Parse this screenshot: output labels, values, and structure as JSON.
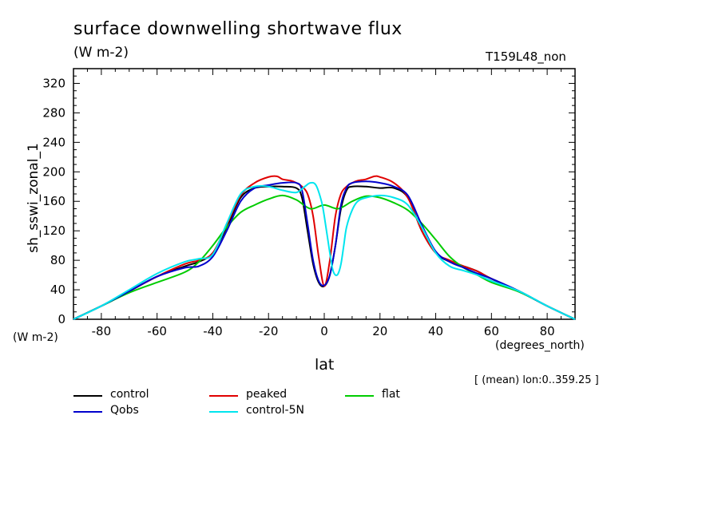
{
  "title": "surface downwelling shortwave flux",
  "units": "(W m-2)",
  "run_label": "T159L48_non",
  "note": "[ (mean) lon:0..359.25 ]",
  "chart_data": {
    "type": "line",
    "xlabel": "lat",
    "xunits": "(degrees_north)",
    "ylabel": "sh_sswi_zonal_1",
    "yunits": "(W m-2)",
    "xlim": [
      -90,
      90
    ],
    "ylim": [
      0,
      340
    ],
    "xticks": [
      -80,
      -60,
      -40,
      -20,
      0,
      20,
      40,
      60,
      80
    ],
    "yticks": [
      0,
      40,
      80,
      120,
      160,
      200,
      240,
      280,
      320
    ],
    "grid": false,
    "legend_position": "bottom",
    "series": [
      {
        "name": "control",
        "color": "#000000",
        "x": [
          -90,
          -80,
          -70,
          -60,
          -50,
          -45,
          -40,
          -35,
          -30,
          -25,
          -20,
          -15,
          -10,
          -8,
          -6,
          -4,
          -2,
          0,
          2,
          4,
          6,
          8,
          10,
          15,
          20,
          25,
          30,
          35,
          40,
          45,
          50,
          55,
          60,
          70,
          80,
          90
        ],
        "y": [
          0,
          18,
          38,
          58,
          72,
          78,
          90,
          125,
          165,
          178,
          180,
          180,
          178,
          165,
          120,
          75,
          50,
          45,
          60,
          100,
          150,
          175,
          180,
          180,
          178,
          178,
          165,
          120,
          90,
          78,
          72,
          65,
          55,
          38,
          18,
          0
        ]
      },
      {
        "name": "peaked",
        "color": "#e00000",
        "x": [
          -90,
          -80,
          -70,
          -60,
          -50,
          -45,
          -40,
          -35,
          -30,
          -25,
          -20,
          -17,
          -15,
          -12,
          -10,
          -8,
          -6,
          -4,
          -2,
          0,
          2,
          4,
          6,
          8,
          10,
          12,
          15,
          18,
          20,
          25,
          30,
          35,
          40,
          45,
          50,
          55,
          60,
          70,
          80,
          90
        ],
        "y": [
          0,
          18,
          38,
          58,
          75,
          80,
          90,
          128,
          168,
          185,
          193,
          194,
          190,
          188,
          185,
          180,
          170,
          140,
          85,
          45,
          80,
          140,
          170,
          180,
          185,
          188,
          190,
          194,
          193,
          185,
          165,
          120,
          90,
          80,
          72,
          65,
          55,
          38,
          18,
          0
        ]
      },
      {
        "name": "flat",
        "color": "#00cc00",
        "x": [
          -90,
          -80,
          -70,
          -60,
          -50,
          -45,
          -40,
          -35,
          -30,
          -25,
          -20,
          -15,
          -10,
          -5,
          0,
          5,
          10,
          15,
          20,
          25,
          30,
          35,
          40,
          45,
          50,
          55,
          60,
          70,
          80,
          90
        ],
        "y": [
          0,
          18,
          36,
          50,
          64,
          78,
          100,
          125,
          145,
          155,
          163,
          168,
          162,
          150,
          155,
          150,
          160,
          167,
          165,
          158,
          148,
          130,
          108,
          85,
          70,
          60,
          50,
          37,
          18,
          0
        ]
      },
      {
        "name": "Qobs",
        "color": "#0000cc",
        "x": [
          -90,
          -80,
          -70,
          -60,
          -50,
          -45,
          -40,
          -35,
          -30,
          -25,
          -20,
          -15,
          -10,
          -8,
          -6,
          -4,
          -2,
          0,
          2,
          4,
          6,
          8,
          10,
          15,
          20,
          25,
          30,
          35,
          40,
          45,
          50,
          55,
          60,
          70,
          80,
          90
        ],
        "y": [
          0,
          18,
          38,
          58,
          70,
          72,
          85,
          120,
          160,
          178,
          182,
          185,
          185,
          175,
          130,
          80,
          52,
          46,
          60,
          100,
          155,
          178,
          185,
          187,
          185,
          180,
          168,
          128,
          92,
          78,
          70,
          62,
          55,
          38,
          18,
          0
        ]
      },
      {
        "name": "control-5N",
        "color": "#00e5ee",
        "x": [
          -90,
          -80,
          -70,
          -60,
          -50,
          -45,
          -40,
          -35,
          -30,
          -25,
          -20,
          -15,
          -10,
          -7,
          -5,
          -3,
          -1,
          0,
          2,
          3,
          4,
          5,
          6,
          7,
          8,
          10,
          12,
          15,
          20,
          25,
          30,
          35,
          40,
          45,
          50,
          55,
          60,
          70,
          80,
          90
        ],
        "y": [
          0,
          18,
          40,
          62,
          78,
          82,
          88,
          130,
          170,
          180,
          180,
          175,
          172,
          180,
          185,
          182,
          160,
          140,
          90,
          68,
          60,
          62,
          75,
          100,
          125,
          148,
          160,
          165,
          168,
          165,
          155,
          125,
          90,
          72,
          66,
          60,
          52,
          38,
          18,
          0
        ]
      }
    ]
  }
}
